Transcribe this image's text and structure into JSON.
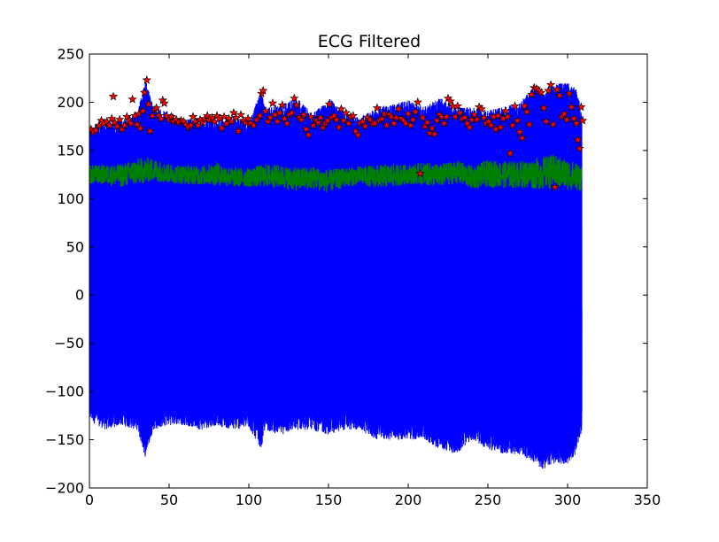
{
  "chart_data": {
    "type": "line",
    "title": "ECG Filtered",
    "xlabel": "",
    "ylabel": "",
    "xlim": [
      0,
      350
    ],
    "ylim": [
      -200,
      250
    ],
    "x_ticks": [
      0,
      50,
      100,
      150,
      200,
      250,
      300,
      350
    ],
    "y_ticks": [
      -200,
      -150,
      -100,
      -50,
      0,
      50,
      100,
      150,
      200,
      250
    ],
    "x_tick_labels": [
      "0",
      "50",
      "100",
      "150",
      "200",
      "250",
      "300",
      "350"
    ],
    "y_tick_labels": [
      "−200",
      "−150",
      "−100",
      "−50",
      "0",
      "50",
      "100",
      "150",
      "200",
      "250"
    ],
    "grid": false,
    "legend": "none",
    "series": [
      {
        "kind": "signal",
        "color": "#0000ff",
        "x": [
          0,
          10,
          20,
          30,
          35,
          40,
          50,
          60,
          70,
          80,
          90,
          100,
          108,
          110,
          120,
          130,
          140,
          150,
          160,
          170,
          180,
          190,
          200,
          210,
          220,
          230,
          240,
          250,
          260,
          270,
          280,
          285,
          290,
          300,
          305,
          309
        ],
        "max": [
          175,
          180,
          182,
          190,
          225,
          195,
          190,
          182,
          185,
          182,
          185,
          180,
          213,
          195,
          198,
          205,
          188,
          205,
          190,
          185,
          195,
          198,
          202,
          195,
          205,
          195,
          195,
          192,
          195,
          200,
          218,
          210,
          220,
          220,
          215,
          195
        ],
        "min": [
          -130,
          -140,
          -135,
          -140,
          -168,
          -140,
          -135,
          -135,
          -140,
          -135,
          -140,
          -138,
          -160,
          -140,
          -145,
          -140,
          -140,
          -145,
          -140,
          -140,
          -150,
          -150,
          -150,
          -150,
          -160,
          -165,
          -150,
          -160,
          -165,
          -165,
          -175,
          -182,
          -175,
          -175,
          -165,
          -140
        ],
        "end_value": -15
      },
      {
        "kind": "baseline",
        "color": "#008000",
        "x": [
          0,
          10,
          20,
          30,
          40,
          50,
          60,
          70,
          80,
          90,
          100,
          110,
          120,
          130,
          140,
          150,
          160,
          170,
          180,
          190,
          200,
          210,
          220,
          230,
          240,
          250,
          260,
          270,
          280,
          290,
          300,
          309
        ],
        "center": [
          125,
          125,
          124,
          128,
          130,
          126,
          125,
          124,
          126,
          122,
          122,
          124,
          123,
          120,
          122,
          118,
          122,
          124,
          123,
          124,
          125,
          126,
          124,
          128,
          122,
          126,
          125,
          125,
          126,
          128,
          125,
          122
        ],
        "spread": [
          10,
          10,
          12,
          14,
          12,
          10,
          10,
          10,
          12,
          10,
          10,
          12,
          12,
          12,
          12,
          12,
          10,
          10,
          12,
          12,
          10,
          12,
          12,
          12,
          12,
          14,
          14,
          14,
          16,
          18,
          16,
          14
        ]
      },
      {
        "kind": "peaks",
        "marker": "star",
        "color": "#ff0000",
        "edge_color": "#000000",
        "points": [
          [
            1,
            172
          ],
          [
            2.5,
            169
          ],
          [
            4,
            171
          ],
          [
            6,
            176
          ],
          [
            7.5,
            181
          ],
          [
            9,
            178
          ],
          [
            11,
            180
          ],
          [
            12.5,
            176
          ],
          [
            14,
            183
          ],
          [
            15,
            206
          ],
          [
            16,
            179
          ],
          [
            17.5,
            175
          ],
          [
            19,
            182
          ],
          [
            20.5,
            172
          ],
          [
            22,
            176
          ],
          [
            23.5,
            185
          ],
          [
            25,
            181
          ],
          [
            26,
            178
          ],
          [
            27,
            203
          ],
          [
            28.5,
            186
          ],
          [
            30,
            177
          ],
          [
            31,
            188
          ],
          [
            32,
            173
          ],
          [
            33.5,
            191
          ],
          [
            34.5,
            210
          ],
          [
            36,
            223
          ],
          [
            37,
            198
          ],
          [
            38,
            170
          ],
          [
            39.5,
            186
          ],
          [
            41,
            192
          ],
          [
            42,
            194
          ],
          [
            43.5,
            186
          ],
          [
            45,
            183
          ],
          [
            46,
            202
          ],
          [
            47,
            199
          ],
          [
            48.5,
            186
          ],
          [
            50,
            182
          ],
          [
            51.5,
            185
          ],
          [
            53,
            180
          ],
          [
            54.5,
            182
          ],
          [
            56,
            179
          ],
          [
            57.5,
            181
          ],
          [
            59,
            180
          ],
          [
            60.5,
            177
          ],
          [
            62,
            174
          ],
          [
            63.5,
            176
          ],
          [
            65,
            185
          ],
          [
            66.5,
            180
          ],
          [
            68,
            176
          ],
          [
            69.5,
            182
          ],
          [
            71,
            179
          ],
          [
            72.5,
            183
          ],
          [
            74,
            186
          ],
          [
            75.5,
            182
          ],
          [
            77,
            184
          ],
          [
            78.5,
            180
          ],
          [
            80,
            186
          ],
          [
            81.5,
            183
          ],
          [
            83,
            173
          ],
          [
            84.5,
            185
          ],
          [
            86,
            178
          ],
          [
            87.5,
            183
          ],
          [
            89,
            180
          ],
          [
            90.5,
            189
          ],
          [
            92,
            184
          ],
          [
            93.5,
            170
          ],
          [
            95,
            187
          ],
          [
            96.5,
            181
          ],
          [
            98,
            179
          ],
          [
            99.5,
            183
          ],
          [
            101,
            178
          ],
          [
            103,
            176
          ],
          [
            105,
            182
          ],
          [
            107,
            186
          ],
          [
            108,
            209
          ],
          [
            109,
            212
          ],
          [
            110.5,
            191
          ],
          [
            112,
            180
          ],
          [
            113.5,
            184
          ],
          [
            115,
            199
          ],
          [
            116.5,
            187
          ],
          [
            118,
            180
          ],
          [
            119.5,
            189
          ],
          [
            121,
            197
          ],
          [
            122.5,
            183
          ],
          [
            124,
            178
          ],
          [
            125.5,
            187
          ],
          [
            127,
            189
          ],
          [
            128.5,
            204
          ],
          [
            130,
            197
          ],
          [
            131.5,
            184
          ],
          [
            133,
            182
          ],
          [
            134.5,
            187
          ],
          [
            136,
            172
          ],
          [
            137.5,
            166
          ],
          [
            139,
            185
          ],
          [
            140.5,
            176
          ],
          [
            142,
            181
          ],
          [
            143.5,
            179
          ],
          [
            145,
            184
          ],
          [
            146.5,
            174
          ],
          [
            148,
            178
          ],
          [
            149.5,
            181
          ],
          [
            150.5,
            198
          ],
          [
            152,
            184
          ],
          [
            153.5,
            186
          ],
          [
            155,
            182
          ],
          [
            156.5,
            174
          ],
          [
            158,
            193
          ],
          [
            159.5,
            181
          ],
          [
            161,
            189
          ],
          [
            162.5,
            178
          ],
          [
            164,
            185
          ],
          [
            165.5,
            186
          ],
          [
            167,
            170
          ],
          [
            168.5,
            166
          ],
          [
            170,
            178
          ],
          [
            171.5,
            180
          ],
          [
            173,
            175
          ],
          [
            174.5,
            184
          ],
          [
            176,
            182
          ],
          [
            177.5,
            178
          ],
          [
            179,
            178
          ],
          [
            180.5,
            194
          ],
          [
            182,
            181
          ],
          [
            183.5,
            183
          ],
          [
            185,
            188
          ],
          [
            186.5,
            176
          ],
          [
            188,
            187
          ],
          [
            189.5,
            185
          ],
          [
            191,
            178
          ],
          [
            192.5,
            184
          ],
          [
            194,
            193
          ],
          [
            195.5,
            183
          ],
          [
            197,
            181
          ],
          [
            198.5,
            178
          ],
          [
            200,
            188
          ],
          [
            201.5,
            176
          ],
          [
            203,
            182
          ],
          [
            204.5,
            190
          ],
          [
            206,
            200
          ],
          [
            207.5,
            126
          ],
          [
            209,
            184
          ],
          [
            210.5,
            175
          ],
          [
            212,
            179
          ],
          [
            213.5,
            168
          ],
          [
            215,
            173
          ],
          [
            216.5,
            167
          ],
          [
            218,
            181
          ],
          [
            219.5,
            187
          ],
          [
            221,
            185
          ],
          [
            222.5,
            178
          ],
          [
            224,
            185
          ],
          [
            225,
            204
          ],
          [
            226.5,
            201
          ],
          [
            228,
            196
          ],
          [
            229.5,
            185
          ],
          [
            231,
            196
          ],
          [
            232.5,
            189
          ],
          [
            234,
            183
          ],
          [
            235.5,
            184
          ],
          [
            237,
            178
          ],
          [
            238.5,
            174
          ],
          [
            240,
            182
          ],
          [
            241.5,
            187
          ],
          [
            243,
            182
          ],
          [
            244.5,
            195
          ],
          [
            246,
            193
          ],
          [
            247.5,
            184
          ],
          [
            249,
            178
          ],
          [
            250.5,
            180
          ],
          [
            252,
            176
          ],
          [
            253.5,
            185
          ],
          [
            255,
            172
          ],
          [
            256.5,
            186
          ],
          [
            258,
            174
          ],
          [
            259.5,
            183
          ],
          [
            261,
            191
          ],
          [
            262.5,
            185
          ],
          [
            264,
            147
          ],
          [
            265.5,
            176
          ],
          [
            267,
            196
          ],
          [
            268.5,
            181
          ],
          [
            270,
            169
          ],
          [
            271.5,
            163
          ],
          [
            273,
            196
          ],
          [
            274.5,
            190
          ],
          [
            276,
            177
          ],
          [
            277.5,
            208
          ],
          [
            279,
            215
          ],
          [
            280.5,
            214
          ],
          [
            282,
            212
          ],
          [
            283.5,
            210
          ],
          [
            285,
            194
          ],
          [
            286.5,
            180
          ],
          [
            288,
            212
          ],
          [
            289.5,
            218
          ],
          [
            291,
            177
          ],
          [
            292,
            112
          ],
          [
            293.5,
            213
          ],
          [
            295,
            207
          ],
          [
            296.5,
            185
          ],
          [
            298,
            188
          ],
          [
            299.5,
            182
          ],
          [
            301,
            209
          ],
          [
            302.5,
            195
          ],
          [
            304,
            183
          ],
          [
            305.5,
            178
          ],
          [
            306.5,
            161
          ],
          [
            307.5,
            152
          ],
          [
            308.5,
            195
          ],
          [
            309.5,
            181
          ]
        ]
      }
    ]
  }
}
